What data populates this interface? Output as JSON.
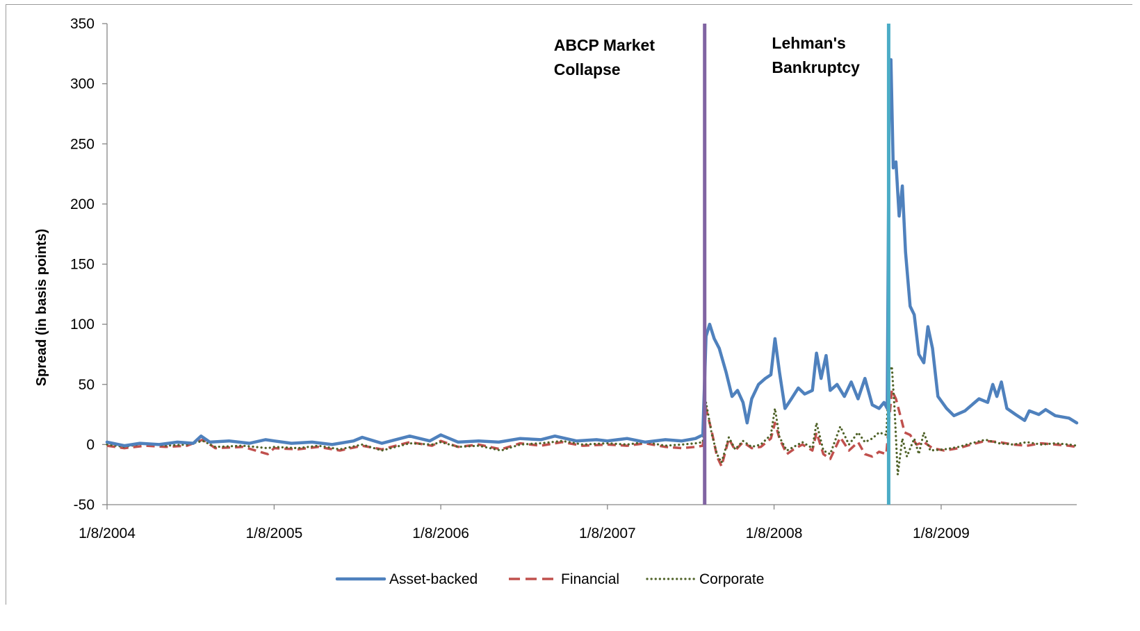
{
  "chart_data": {
    "type": "line",
    "title": "",
    "xlabel": "",
    "ylabel": "Spread (in basis points)",
    "ylim": [
      -50,
      350
    ],
    "yticks": [
      350,
      300,
      250,
      200,
      150,
      100,
      50,
      0,
      -50
    ],
    "xlim": [
      "2004-01-08",
      "2009-11-01"
    ],
    "xticks": [
      "2004-01-08",
      "2005-01-08",
      "2006-01-08",
      "2007-01-08",
      "2008-01-08",
      "2009-01-08"
    ],
    "xtick_labels": [
      "1/8/2004",
      "1/8/2005",
      "1/8/2006",
      "1/8/2007",
      "1/8/2008",
      "1/8/2009"
    ],
    "grid": false,
    "legend_position": "bottom",
    "events": [
      {
        "label_lines": [
          "ABCP Market",
          "Collapse"
        ],
        "date": "2007-08-09",
        "color": "#8064a2"
      },
      {
        "label_lines": [
          "Lehman's",
          "Bankruptcy"
        ],
        "date": "2008-09-15",
        "color": "#4bacc6"
      }
    ],
    "series": [
      {
        "name": "Asset-backed",
        "color": "#4f81bd",
        "style": "solid",
        "points": [
          [
            "2004-01-08",
            2
          ],
          [
            "2004-02-15",
            -1
          ],
          [
            "2004-03-20",
            1
          ],
          [
            "2004-05-01",
            0
          ],
          [
            "2004-06-10",
            2
          ],
          [
            "2004-07-15",
            1
          ],
          [
            "2004-08-01",
            7
          ],
          [
            "2004-08-20",
            2
          ],
          [
            "2004-10-01",
            3
          ],
          [
            "2004-11-15",
            1
          ],
          [
            "2004-12-20",
            4
          ],
          [
            "2005-01-08",
            3
          ],
          [
            "2005-02-15",
            1
          ],
          [
            "2005-04-01",
            2
          ],
          [
            "2005-05-15",
            0
          ],
          [
            "2005-07-01",
            3
          ],
          [
            "2005-07-20",
            6
          ],
          [
            "2005-09-01",
            1
          ],
          [
            "2005-10-01",
            4
          ],
          [
            "2005-11-01",
            7
          ],
          [
            "2005-12-15",
            3
          ],
          [
            "2006-01-08",
            8
          ],
          [
            "2006-02-15",
            2
          ],
          [
            "2006-04-01",
            3
          ],
          [
            "2006-05-15",
            2
          ],
          [
            "2006-07-01",
            5
          ],
          [
            "2006-08-15",
            4
          ],
          [
            "2006-09-15",
            7
          ],
          [
            "2006-11-01",
            3
          ],
          [
            "2006-12-15",
            4
          ],
          [
            "2007-01-08",
            3
          ],
          [
            "2007-02-20",
            5
          ],
          [
            "2007-04-01",
            2
          ],
          [
            "2007-05-15",
            4
          ],
          [
            "2007-06-20",
            3
          ],
          [
            "2007-07-20",
            5
          ],
          [
            "2007-08-05",
            8
          ],
          [
            "2007-08-12",
            90
          ],
          [
            "2007-08-20",
            100
          ],
          [
            "2007-08-30",
            88
          ],
          [
            "2007-09-10",
            80
          ],
          [
            "2007-09-25",
            60
          ],
          [
            "2007-10-08",
            40
          ],
          [
            "2007-10-20",
            45
          ],
          [
            "2007-11-01",
            35
          ],
          [
            "2007-11-10",
            18
          ],
          [
            "2007-11-20",
            38
          ],
          [
            "2007-12-05",
            50
          ],
          [
            "2007-12-20",
            55
          ],
          [
            "2008-01-01",
            58
          ],
          [
            "2008-01-10",
            88
          ],
          [
            "2008-01-20",
            60
          ],
          [
            "2008-02-01",
            30
          ],
          [
            "2008-02-15",
            38
          ],
          [
            "2008-03-01",
            47
          ],
          [
            "2008-03-15",
            42
          ],
          [
            "2008-04-01",
            45
          ],
          [
            "2008-04-10",
            76
          ],
          [
            "2008-04-20",
            55
          ],
          [
            "2008-05-01",
            74
          ],
          [
            "2008-05-10",
            45
          ],
          [
            "2008-05-25",
            50
          ],
          [
            "2008-06-10",
            40
          ],
          [
            "2008-06-25",
            52
          ],
          [
            "2008-07-10",
            38
          ],
          [
            "2008-07-25",
            55
          ],
          [
            "2008-08-10",
            33
          ],
          [
            "2008-08-25",
            30
          ],
          [
            "2008-09-05",
            35
          ],
          [
            "2008-09-12",
            30
          ],
          [
            "2008-09-16",
            280
          ],
          [
            "2008-09-20",
            320
          ],
          [
            "2008-09-25",
            230
          ],
          [
            "2008-10-01",
            235
          ],
          [
            "2008-10-08",
            190
          ],
          [
            "2008-10-15",
            215
          ],
          [
            "2008-10-22",
            160
          ],
          [
            "2008-11-01",
            115
          ],
          [
            "2008-11-10",
            108
          ],
          [
            "2008-11-20",
            75
          ],
          [
            "2008-12-01",
            68
          ],
          [
            "2008-12-10",
            98
          ],
          [
            "2008-12-20",
            80
          ],
          [
            "2009-01-01",
            40
          ],
          [
            "2009-01-20",
            30
          ],
          [
            "2009-02-05",
            24
          ],
          [
            "2009-03-01",
            28
          ],
          [
            "2009-04-01",
            38
          ],
          [
            "2009-04-20",
            35
          ],
          [
            "2009-05-01",
            50
          ],
          [
            "2009-05-10",
            40
          ],
          [
            "2009-05-20",
            52
          ],
          [
            "2009-06-01",
            30
          ],
          [
            "2009-06-20",
            25
          ],
          [
            "2009-07-10",
            20
          ],
          [
            "2009-07-20",
            28
          ],
          [
            "2009-08-10",
            25
          ],
          [
            "2009-08-25",
            29
          ],
          [
            "2009-09-15",
            24
          ],
          [
            "2009-10-15",
            22
          ],
          [
            "2009-11-01",
            18
          ]
        ]
      },
      {
        "name": "Financial",
        "color": "#c0504d",
        "style": "dashed",
        "points": [
          [
            "2004-01-08",
            -1
          ],
          [
            "2004-02-15",
            -3
          ],
          [
            "2004-04-01",
            -1
          ],
          [
            "2004-05-15",
            -2
          ],
          [
            "2004-07-01",
            -1
          ],
          [
            "2004-08-05",
            4
          ],
          [
            "2004-09-01",
            -3
          ],
          [
            "2004-11-01",
            -2
          ],
          [
            "2004-12-25",
            -8
          ],
          [
            "2005-01-08",
            -3
          ],
          [
            "2005-03-01",
            -4
          ],
          [
            "2005-04-15",
            -2
          ],
          [
            "2005-06-01",
            -5
          ],
          [
            "2005-07-20",
            -1
          ],
          [
            "2005-09-01",
            -4
          ],
          [
            "2005-11-01",
            2
          ],
          [
            "2005-12-20",
            -1
          ],
          [
            "2006-01-08",
            3
          ],
          [
            "2006-02-15",
            -2
          ],
          [
            "2006-04-01",
            0
          ],
          [
            "2006-05-20",
            -4
          ],
          [
            "2006-07-01",
            1
          ],
          [
            "2006-08-15",
            -1
          ],
          [
            "2006-10-01",
            2
          ],
          [
            "2006-11-15",
            -1
          ],
          [
            "2007-01-08",
            0
          ],
          [
            "2007-02-20",
            -1
          ],
          [
            "2007-04-01",
            1
          ],
          [
            "2007-05-15",
            -2
          ],
          [
            "2007-06-20",
            -3
          ],
          [
            "2007-07-20",
            -2
          ],
          [
            "2007-08-05",
            -1
          ],
          [
            "2007-08-12",
            30
          ],
          [
            "2007-08-25",
            10
          ],
          [
            "2007-09-05",
            -10
          ],
          [
            "2007-09-15",
            -18
          ],
          [
            "2007-10-01",
            5
          ],
          [
            "2007-10-15",
            -5
          ],
          [
            "2007-11-01",
            2
          ],
          [
            "2007-11-20",
            -3
          ],
          [
            "2007-12-10",
            -2
          ],
          [
            "2008-01-01",
            5
          ],
          [
            "2008-01-10",
            18
          ],
          [
            "2008-01-20",
            5
          ],
          [
            "2008-02-05",
            -8
          ],
          [
            "2008-02-20",
            -4
          ],
          [
            "2008-03-10",
            0
          ],
          [
            "2008-04-01",
            -5
          ],
          [
            "2008-04-10",
            10
          ],
          [
            "2008-04-25",
            -8
          ],
          [
            "2008-05-10",
            -12
          ],
          [
            "2008-06-01",
            6
          ],
          [
            "2008-06-20",
            -5
          ],
          [
            "2008-07-10",
            2
          ],
          [
            "2008-07-25",
            -8
          ],
          [
            "2008-08-10",
            -10
          ],
          [
            "2008-08-25",
            -6
          ],
          [
            "2008-09-10",
            -8
          ],
          [
            "2008-09-16",
            20
          ],
          [
            "2008-09-22",
            45
          ],
          [
            "2008-10-01",
            38
          ],
          [
            "2008-10-10",
            25
          ],
          [
            "2008-10-20",
            10
          ],
          [
            "2008-11-01",
            8
          ],
          [
            "2008-11-15",
            0
          ],
          [
            "2008-12-01",
            2
          ],
          [
            "2008-12-20",
            -3
          ],
          [
            "2009-01-15",
            -5
          ],
          [
            "2009-02-15",
            -3
          ],
          [
            "2009-03-15",
            0
          ],
          [
            "2009-04-15",
            3
          ],
          [
            "2009-05-15",
            2
          ],
          [
            "2009-06-15",
            0
          ],
          [
            "2009-07-15",
            -1
          ],
          [
            "2009-08-15",
            1
          ],
          [
            "2009-09-15",
            0
          ],
          [
            "2009-10-15",
            -1
          ],
          [
            "2009-11-01",
            -2
          ]
        ]
      },
      {
        "name": "Corporate",
        "color": "#4f6228",
        "style": "dotted",
        "points": [
          [
            "2004-01-08",
            0
          ],
          [
            "2004-02-15",
            -2
          ],
          [
            "2004-04-01",
            1
          ],
          [
            "2004-05-15",
            -1
          ],
          [
            "2004-07-01",
            0
          ],
          [
            "2004-08-05",
            3
          ],
          [
            "2004-09-01",
            -2
          ],
          [
            "2004-11-01",
            -1
          ],
          [
            "2004-12-25",
            -3
          ],
          [
            "2005-01-08",
            -2
          ],
          [
            "2005-03-01",
            -3
          ],
          [
            "2005-04-15",
            -1
          ],
          [
            "2005-06-01",
            -4
          ],
          [
            "2005-07-20",
            0
          ],
          [
            "2005-09-01",
            -5
          ],
          [
            "2005-11-01",
            1
          ],
          [
            "2005-12-20",
            0
          ],
          [
            "2006-01-08",
            2
          ],
          [
            "2006-02-15",
            -2
          ],
          [
            "2006-04-01",
            -1
          ],
          [
            "2006-05-20",
            -5
          ],
          [
            "2006-07-01",
            0
          ],
          [
            "2006-08-15",
            1
          ],
          [
            "2006-10-01",
            3
          ],
          [
            "2006-11-15",
            0
          ],
          [
            "2007-01-08",
            1
          ],
          [
            "2007-02-20",
            0
          ],
          [
            "2007-04-01",
            2
          ],
          [
            "2007-05-15",
            -1
          ],
          [
            "2007-06-20",
            0
          ],
          [
            "2007-07-20",
            1
          ],
          [
            "2007-08-05",
            2
          ],
          [
            "2007-08-12",
            35
          ],
          [
            "2007-08-25",
            8
          ],
          [
            "2007-09-05",
            -8
          ],
          [
            "2007-09-15",
            -15
          ],
          [
            "2007-10-01",
            6
          ],
          [
            "2007-10-15",
            -4
          ],
          [
            "2007-11-01",
            3
          ],
          [
            "2007-11-20",
            -2
          ],
          [
            "2007-12-10",
            0
          ],
          [
            "2008-01-01",
            8
          ],
          [
            "2008-01-10",
            30
          ],
          [
            "2008-01-20",
            6
          ],
          [
            "2008-02-05",
            -5
          ],
          [
            "2008-02-20",
            -2
          ],
          [
            "2008-03-10",
            2
          ],
          [
            "2008-04-01",
            -3
          ],
          [
            "2008-04-10",
            18
          ],
          [
            "2008-04-25",
            -5
          ],
          [
            "2008-05-10",
            -8
          ],
          [
            "2008-06-01",
            15
          ],
          [
            "2008-06-20",
            0
          ],
          [
            "2008-07-10",
            10
          ],
          [
            "2008-07-25",
            2
          ],
          [
            "2008-08-10",
            5
          ],
          [
            "2008-08-25",
            10
          ],
          [
            "2008-09-10",
            8
          ],
          [
            "2008-09-16",
            60
          ],
          [
            "2008-09-22",
            65
          ],
          [
            "2008-09-28",
            30
          ],
          [
            "2008-10-05",
            -25
          ],
          [
            "2008-10-15",
            5
          ],
          [
            "2008-10-25",
            -10
          ],
          [
            "2008-11-10",
            5
          ],
          [
            "2008-11-20",
            -8
          ],
          [
            "2008-12-01",
            10
          ],
          [
            "2008-12-15",
            -5
          ],
          [
            "2009-01-15",
            -4
          ],
          [
            "2009-02-15",
            -2
          ],
          [
            "2009-03-15",
            1
          ],
          [
            "2009-04-15",
            4
          ],
          [
            "2009-05-15",
            1
          ],
          [
            "2009-06-15",
            0
          ],
          [
            "2009-07-15",
            2
          ],
          [
            "2009-08-15",
            0
          ],
          [
            "2009-09-15",
            1
          ],
          [
            "2009-10-15",
            0
          ],
          [
            "2009-11-01",
            -1
          ]
        ]
      }
    ]
  }
}
